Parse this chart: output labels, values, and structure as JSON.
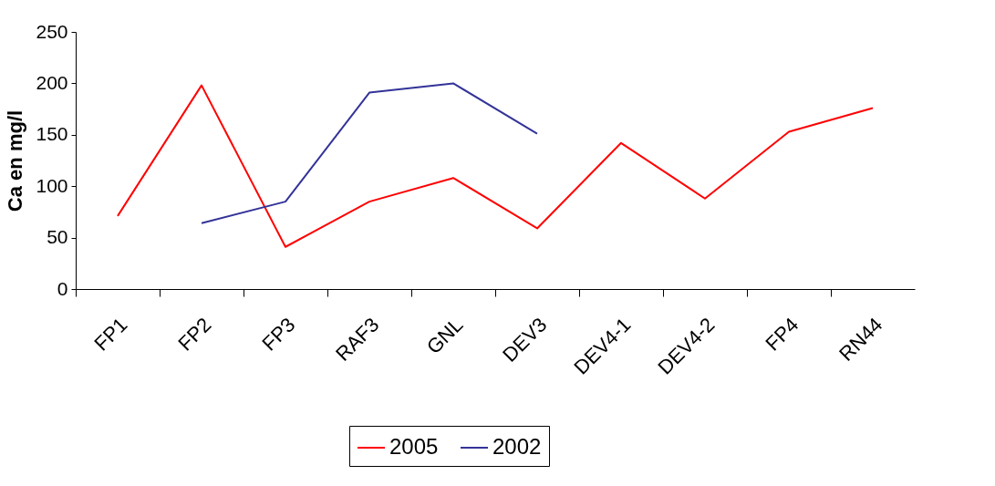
{
  "chart_data": {
    "type": "line",
    "ylabel": "Ca en mg/l",
    "categories": [
      "FP1",
      "FP2",
      "FP3",
      "RAF3",
      "GNL",
      "DEV3",
      "DEV4-1",
      "DEV4-2",
      "FP4",
      "RN44"
    ],
    "series": [
      {
        "name": "2005",
        "color": "#ff0000",
        "values": [
          71,
          198,
          41,
          85,
          108,
          59,
          142,
          88,
          153,
          176
        ]
      },
      {
        "name": "2002",
        "color": "#333399",
        "values": [
          null,
          64,
          85,
          191,
          200,
          151,
          null,
          null,
          null,
          null
        ]
      }
    ],
    "ylim": [
      0,
      250
    ],
    "yticks": [
      0,
      50,
      100,
      150,
      200,
      250
    ],
    "grid": false,
    "legend": "bottom",
    "marker": "none",
    "line_style": "solid"
  }
}
